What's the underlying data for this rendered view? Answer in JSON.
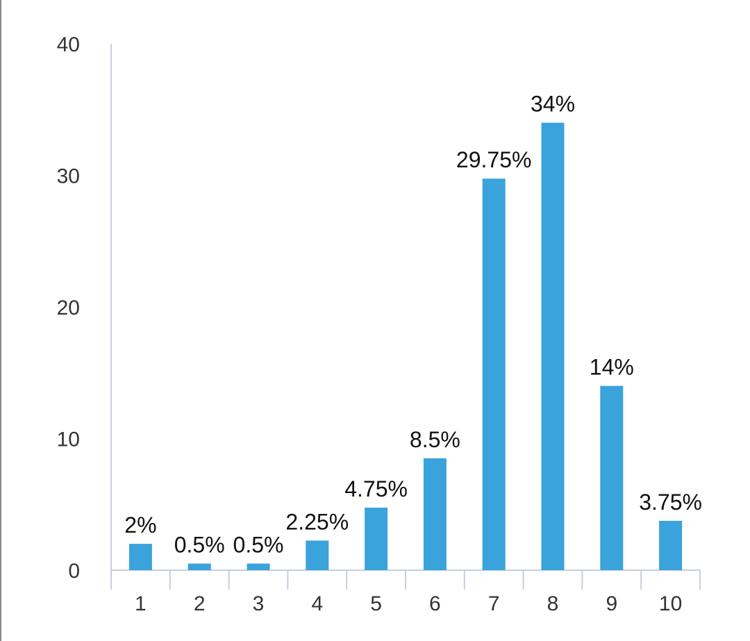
{
  "chart_data": {
    "type": "bar",
    "categories": [
      "1",
      "2",
      "3",
      "4",
      "5",
      "6",
      "7",
      "8",
      "9",
      "10"
    ],
    "values": [
      2,
      0.5,
      0.5,
      2.25,
      4.75,
      8.5,
      29.75,
      34,
      14,
      3.75
    ],
    "data_labels": [
      "2%",
      "0.5%",
      "0.5%",
      "2.25%",
      "4.75%",
      "8.5%",
      "29.75%",
      "34%",
      "14%",
      "3.75%"
    ],
    "ylim": [
      0,
      40
    ],
    "yticks": [
      "0",
      "10",
      "20",
      "30",
      "40"
    ],
    "grid": false,
    "bar_color": "#3aa3dc",
    "axis_color": "#c5cfdd"
  }
}
